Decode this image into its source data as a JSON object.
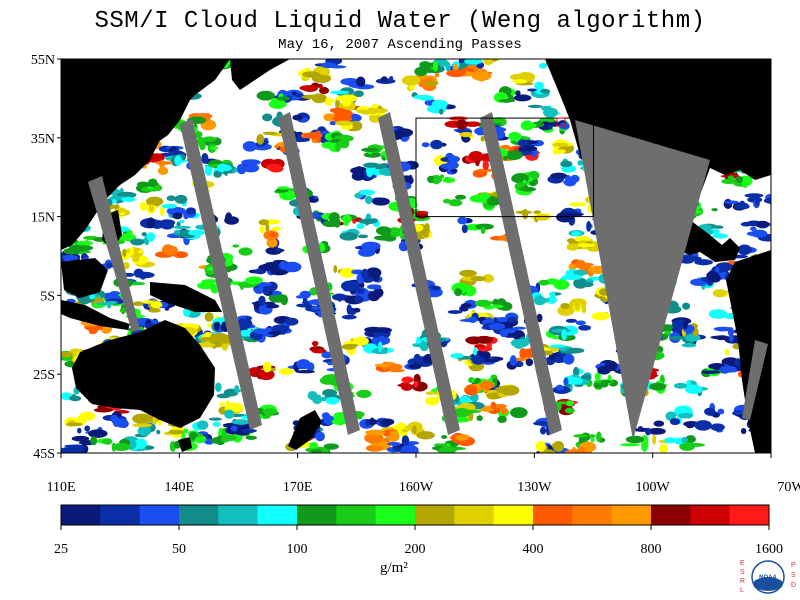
{
  "title": "SSM/I Cloud Liquid Water (Weng algorithm)",
  "subtitle": "May 16, 2007  Ascending Passes",
  "chart_data": {
    "type": "heatmap",
    "title": "SSM/I Cloud Liquid Water (Weng algorithm)",
    "subtitle": "May 16, 2007  Ascending Passes",
    "lat_ticks": [
      "55N",
      "35N",
      "15N",
      "5S",
      "25S",
      "45S"
    ],
    "lat_values": [
      55,
      35,
      15,
      -5,
      -25,
      -45
    ],
    "lon_ticks": [
      "110E",
      "140E",
      "170E",
      "160W",
      "130W",
      "100W",
      "70W"
    ],
    "lon_values": [
      110,
      140,
      170,
      200,
      230,
      260,
      290
    ],
    "lat_range": [
      -45,
      55
    ],
    "lon_range": [
      110,
      290
    ],
    "colorbar": {
      "units": "g/m²",
      "tick_labels": [
        "25",
        "50",
        "100",
        "200",
        "400",
        "800",
        "1600"
      ],
      "tick_values": [
        25,
        50,
        100,
        200,
        400,
        800,
        1600
      ],
      "colors": [
        "#0a1a7a",
        "#0a2ea8",
        "#1a4ef0",
        "#138c8c",
        "#12bfbf",
        "#10ffff",
        "#10991a",
        "#18cc18",
        "#1aff1a",
        "#b3a600",
        "#e0d000",
        "#ffff00",
        "#ff5a00",
        "#ff7a00",
        "#ff9900",
        "#8b0000",
        "#cc0000",
        "#ff1a1a"
      ]
    },
    "region_box": {
      "lon": [
        200,
        245
      ],
      "lat": [
        15,
        40
      ]
    }
  },
  "logo": {
    "left_letters": [
      "E",
      "S",
      "R",
      "L"
    ],
    "right_letters": [
      "P",
      "S",
      "D"
    ],
    "text": "NOAA"
  }
}
